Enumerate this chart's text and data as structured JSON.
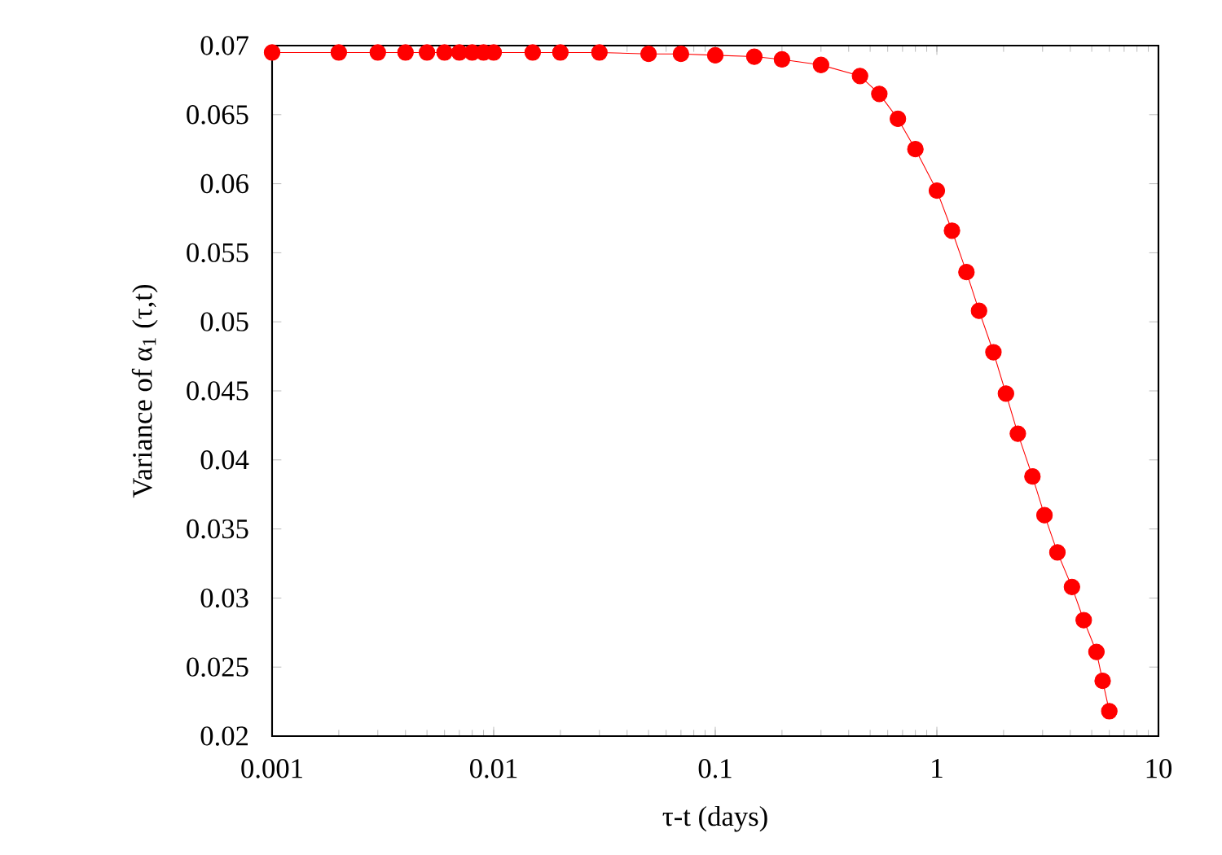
{
  "chart_data": {
    "type": "line",
    "xlabel": "τ-t (days)",
    "ylabel": "Variance of α$_{1}$ (τ,t)",
    "x": [
      0.001,
      0.002,
      0.003,
      0.004,
      0.005,
      0.006,
      0.007,
      0.008,
      0.009,
      0.01,
      0.015,
      0.02,
      0.03,
      0.05,
      0.07,
      0.1,
      0.15,
      0.2,
      0.3,
      0.45,
      0.55,
      0.667,
      0.8,
      1,
      1.17,
      1.36,
      1.55,
      1.8,
      2.05,
      2.32,
      2.7,
      3.06,
      3.5,
      4.07,
      4.6,
      5.25,
      5.6,
      6.0
    ],
    "series": [
      {
        "color": "#ff0000",
        "values": [
          0.0695,
          0.0695,
          0.0695,
          0.0695,
          0.0695,
          0.0695,
          0.0695,
          0.0695,
          0.0695,
          0.0695,
          0.0695,
          0.0695,
          0.0695,
          0.0694,
          0.0694,
          0.0693,
          0.0692,
          0.069,
          0.0686,
          0.0678,
          0.0665,
          0.0647,
          0.0625,
          0.0595,
          0.0566,
          0.0536,
          0.0508,
          0.0478,
          0.0448,
          0.0419,
          0.0388,
          0.036,
          0.0333,
          0.0308,
          0.0284,
          0.0261,
          0.024,
          0.0218
        ]
      }
    ],
    "xlim": [
      0.001,
      10
    ],
    "ylim": [
      0.02,
      0.07
    ],
    "log": "x",
    "xticks": [
      0.001,
      0.01,
      0.1,
      1,
      10
    ],
    "yticks": [
      0.02,
      0.025,
      0.03,
      0.035,
      0.04,
      0.045,
      0.05,
      0.055,
      0.06,
      0.065,
      0.07
    ],
    "marker": "circle",
    "line_style": "solid",
    "grid": false
  }
}
